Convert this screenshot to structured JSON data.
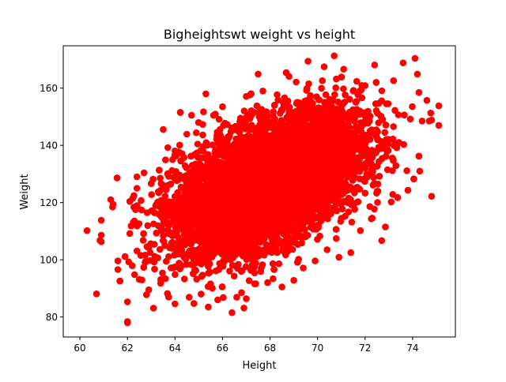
{
  "chart_data": {
    "type": "scatter",
    "title": "Bigheightswt weight vs height",
    "xlabel": "Height",
    "ylabel": "Weight",
    "xlim": [
      59.3,
      75.8
    ],
    "ylim": [
      73.0,
      174.8
    ],
    "xticks": [
      60,
      62,
      64,
      66,
      68,
      70,
      72,
      74
    ],
    "yticks": [
      80,
      100,
      120,
      140,
      160
    ],
    "marker_color": "#ff0000",
    "grid": false,
    "legend": "none",
    "series": [
      {
        "points": [
          [
            60.3,
            110.2
          ],
          [
            60.7,
            88.1
          ],
          [
            60.9,
            113.8
          ],
          [
            60.9,
            108.6
          ],
          [
            60.9,
            106.3
          ],
          [
            61.3,
            121.0
          ],
          [
            61.4,
            119.4
          ],
          [
            61.6,
            96.6
          ],
          [
            61.6,
            99.6
          ],
          [
            61.9,
            101.1
          ],
          [
            62.0,
            78.4
          ],
          [
            62.0,
            78.0
          ],
          [
            62.0,
            85.3
          ],
          [
            62.1,
            109.2
          ],
          [
            62.1,
            120.4
          ],
          [
            62.2,
            97.9
          ],
          [
            62.3,
            94.8
          ],
          [
            62.4,
            103.1
          ],
          [
            62.4,
            129.0
          ],
          [
            62.4,
            125.0
          ],
          [
            62.5,
            93.1
          ],
          [
            62.6,
            117.4
          ],
          [
            62.7,
            130.4
          ],
          [
            62.8,
            87.8
          ],
          [
            62.9,
            89.5
          ],
          [
            63.1,
            83.1
          ],
          [
            63.0,
            126.6
          ],
          [
            63.3,
            123.8
          ],
          [
            63.4,
            118.2
          ],
          [
            63.4,
            91.8
          ],
          [
            63.6,
            134.9
          ],
          [
            63.6,
            93.4
          ],
          [
            63.7,
            139.2
          ],
          [
            63.9,
            135.0
          ],
          [
            64.0,
            84.6
          ],
          [
            64.2,
            140.1
          ],
          [
            64.3,
            137.1
          ],
          [
            64.4,
            93.3
          ],
          [
            64.5,
            143.9
          ],
          [
            64.6,
            86.9
          ],
          [
            64.7,
            150.5
          ],
          [
            64.8,
            84.7
          ],
          [
            64.9,
            144.4
          ],
          [
            65.1,
            88.0
          ],
          [
            65.2,
            151.7
          ],
          [
            65.3,
            158.0
          ],
          [
            65.4,
            83.5
          ],
          [
            65.7,
            150.9
          ],
          [
            65.8,
            86.0
          ],
          [
            66.0,
            153.5
          ],
          [
            66.2,
            147.3
          ],
          [
            66.4,
            81.5
          ],
          [
            66.6,
            86.9
          ],
          [
            66.8,
            88.5
          ],
          [
            67.0,
            86.4
          ],
          [
            67.0,
            157.1
          ],
          [
            67.4,
            91.6
          ],
          [
            67.5,
            164.9
          ],
          [
            67.7,
            159.0
          ],
          [
            67.9,
            92.0
          ],
          [
            68.3,
            157.7
          ],
          [
            68.5,
            90.5
          ],
          [
            68.8,
            164.1
          ],
          [
            69.0,
            92.8
          ],
          [
            69.1,
            162.1
          ],
          [
            69.4,
            97.1
          ],
          [
            69.6,
            169.4
          ],
          [
            69.9,
            99.6
          ],
          [
            70.2,
            162.6
          ],
          [
            70.4,
            103.5
          ],
          [
            70.7,
            171.3
          ],
          [
            70.9,
            100.9
          ],
          [
            71.1,
            166.6
          ],
          [
            71.4,
            102.5
          ],
          [
            71.5,
            159.0
          ],
          [
            71.8,
            110.2
          ],
          [
            72.0,
            160.9
          ],
          [
            72.2,
            118.6
          ],
          [
            72.4,
            168.1
          ],
          [
            72.7,
            106.7
          ],
          [
            72.9,
            154.5
          ],
          [
            73.1,
            120.2
          ],
          [
            73.2,
            162.6
          ],
          [
            73.4,
            150.7
          ],
          [
            73.6,
            168.8
          ],
          [
            73.8,
            124.3
          ],
          [
            73.9,
            149.2
          ],
          [
            74.1,
            170.4
          ],
          [
            74.2,
            164.9
          ],
          [
            74.3,
            131.0
          ],
          [
            74.4,
            148.5
          ],
          [
            74.6,
            155.7
          ],
          [
            74.7,
            148.5
          ],
          [
            74.8,
            122.2
          ],
          [
            75.1,
            153.8
          ],
          [
            75.1,
            147.0
          ]
        ]
      }
    ]
  }
}
